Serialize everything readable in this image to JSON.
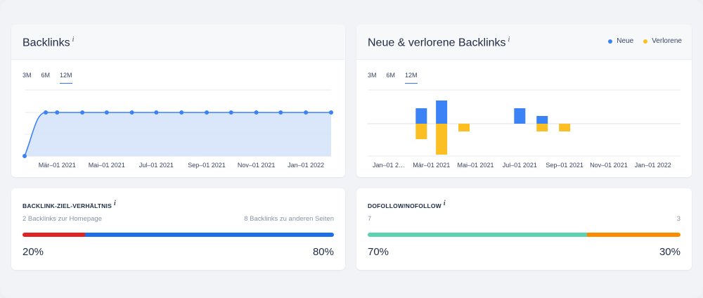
{
  "backlinks_card": {
    "title": "Backlinks",
    "info": "i",
    "tabs": [
      "3M",
      "6M",
      "12M"
    ],
    "active_tab": "12M"
  },
  "new_lost_card": {
    "title": "Neue & verlorene Backlinks",
    "info": "i",
    "tabs": [
      "3M",
      "6M",
      "12M"
    ],
    "active_tab": "12M",
    "legend": [
      {
        "label": "Neue",
        "color": "#3b82f6"
      },
      {
        "label": "Verlorene",
        "color": "#fbbf24"
      }
    ]
  },
  "ratio_card": {
    "title": "BACKLINK-ZIEL-VERHÄLTNIS",
    "info": "i",
    "left_label": "2 Backlinks zur Homepage",
    "right_label": "8 Backlinks zu anderen Seiten",
    "left_pct": "20%",
    "right_pct": "80%",
    "left_fraction": 0.2,
    "colors": {
      "left": "#e02424",
      "right": "#1c6fe8"
    }
  },
  "follow_card": {
    "title": "DOFOLLOW/NOFOLLOW",
    "info": "i",
    "left_label": "7",
    "right_label": "3",
    "left_pct": "70%",
    "right_pct": "30%",
    "left_fraction": 0.7,
    "colors": {
      "left": "#5ad3b0",
      "right": "#fb8c00"
    }
  },
  "chart_data": [
    {
      "type": "area",
      "x_tick_labels": [
        "Mär–01 2021",
        "Mai–01 2021",
        "Jul–01 2021",
        "Sep–01 2021",
        "Nov–01 2021",
        "Jan–01 2022"
      ],
      "x": [
        "2021-01-20",
        "2021-02-15",
        "2021-03-01",
        "2021-04-01",
        "2021-05-01",
        "2021-06-01",
        "2021-07-01",
        "2021-08-01",
        "2021-09-01",
        "2021-10-01",
        "2021-11-01",
        "2021-12-01",
        "2022-01-01",
        "2022-02-01"
      ],
      "values": [
        0,
        10,
        10,
        10,
        10,
        10,
        10,
        10,
        10,
        10,
        10,
        10,
        10,
        10
      ],
      "color": "#3b82f6",
      "fill": "#d6e4fb",
      "grid": true
    },
    {
      "type": "bar",
      "x_tick_labels": [
        "Jan–01 2…",
        "Mär–01 2021",
        "Mai–01 2021",
        "Jul–01 2021",
        "Sep–01 2021",
        "Nov–01 2021",
        "Jan–01 2022"
      ],
      "series": [
        {
          "name": "Neue",
          "color": "#3b82f6",
          "points": [
            [
              "2021-02-15",
              2
            ],
            [
              "2021-03-15",
              3
            ],
            [
              "2021-07-01",
              2
            ],
            [
              "2021-08-01",
              1
            ]
          ]
        },
        {
          "name": "Verlorene",
          "color": "#fbbf24",
          "points": [
            [
              "2021-02-15",
              -2
            ],
            [
              "2021-03-15",
              -4
            ],
            [
              "2021-04-15",
              -1
            ],
            [
              "2021-08-01",
              -1
            ],
            [
              "2021-09-01",
              -1
            ]
          ]
        }
      ],
      "grid": true
    }
  ]
}
